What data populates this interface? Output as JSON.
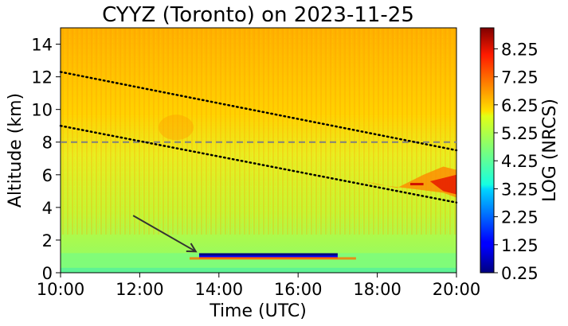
{
  "chart_data": {
    "type": "heatmap",
    "title": "CYYZ (Toronto) on 2023-11-25",
    "xlabel": "Time (UTC)",
    "ylabel": "Altitude (km)",
    "xlim": [
      "10:00",
      "20:00"
    ],
    "ylim": [
      0,
      15
    ],
    "x_ticks": [
      "10:00",
      "12:00",
      "14:00",
      "16:00",
      "18:00",
      "20:00"
    ],
    "y_ticks": [
      "0",
      "2",
      "4",
      "6",
      "8",
      "10",
      "12",
      "14"
    ],
    "colorbar": {
      "label": "LOG (NRCS)",
      "range": [
        0.25,
        9.0
      ],
      "ticks": [
        "0.25",
        "1.25",
        "2.25",
        "3.25",
        "4.25",
        "5.25",
        "6.25",
        "7.25",
        "8.25"
      ],
      "colormap": "jet"
    },
    "annotations": {
      "dashed_horizontal_line": {
        "altitude_km": 8.0,
        "color": "#808080"
      },
      "dotted_lines": [
        {
          "from": {
            "time": "10:00",
            "altitude_km": 12.3
          },
          "to": {
            "time": "20:00",
            "altitude_km": 7.5
          }
        },
        {
          "from": {
            "time": "10:00",
            "altitude_km": 9.0
          },
          "to": {
            "time": "20:00",
            "altitude_km": 4.3
          }
        }
      ],
      "arrow": {
        "from": {
          "time": "11:50",
          "altitude_km": 3.5
        },
        "to": {
          "time": "13:25",
          "altitude_km": 1.3
        }
      }
    },
    "features": {
      "low_layer": {
        "start": "13:30",
        "end": "17:00",
        "altitude_km": 1.0,
        "value_range": [
          0.25,
          9.0
        ]
      },
      "cirrus_patch": {
        "start": "17:40",
        "end": "20:00",
        "altitude_range_km": [
          4.5,
          6.5
        ],
        "value": 8.5
      },
      "background_above_8km": 6.6,
      "background_boundary_layer": 5.0
    }
  }
}
